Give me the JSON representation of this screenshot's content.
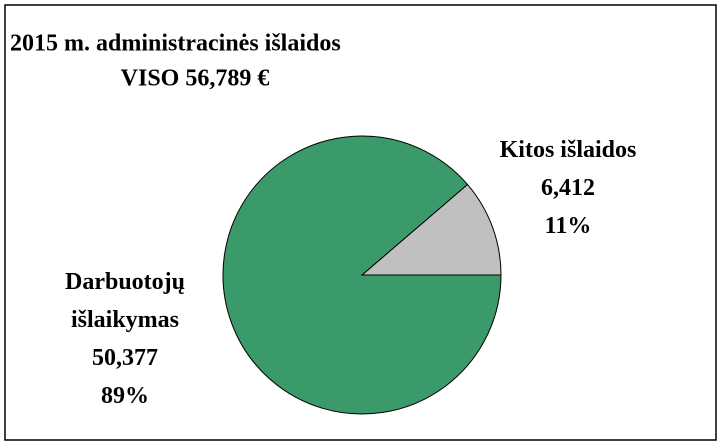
{
  "chart_data": {
    "type": "pie",
    "title": "2015 m. administracinės išlaidos",
    "subtitle": "VISO 56,789 €",
    "categories": [
      "Kitos išlaidos",
      "Darbuotojų išlaikymas"
    ],
    "values": [
      6412,
      50377
    ],
    "value_labels": [
      "6,412",
      "50,377"
    ],
    "percentages": [
      11,
      89
    ],
    "percentage_labels": [
      "11%",
      "89%"
    ],
    "colors": [
      "#c0c0c0",
      "#3a9a6a"
    ]
  }
}
